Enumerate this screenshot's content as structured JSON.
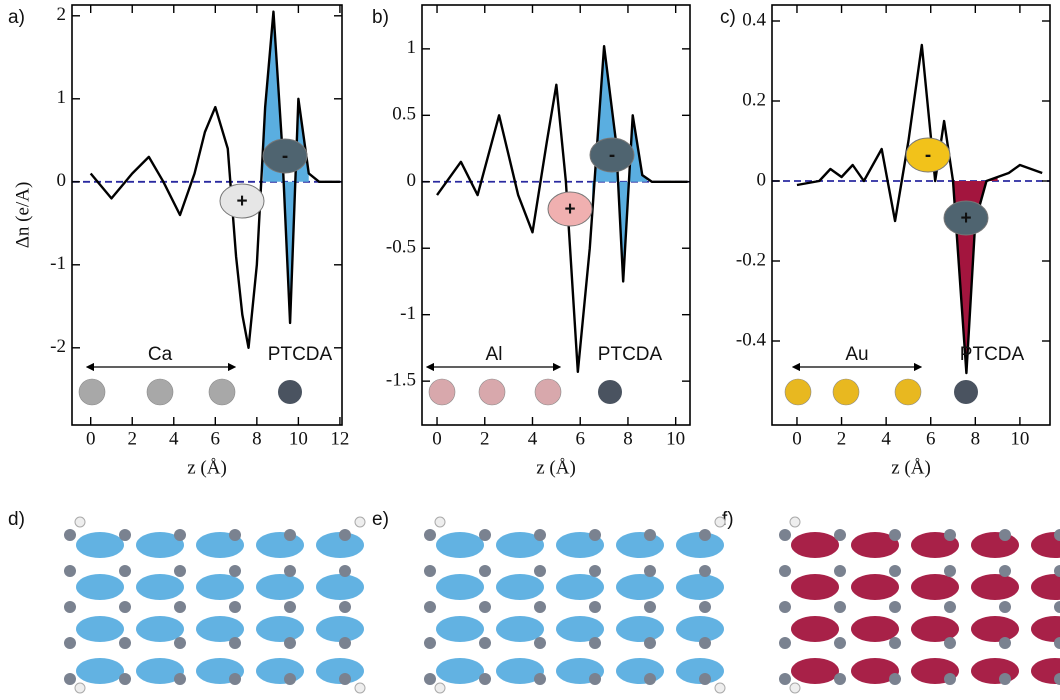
{
  "chart_data": [
    {
      "type": "line",
      "panel_label": "a)",
      "xlabel": "z (Å)",
      "ylabel": "Δn (e/A)",
      "x": [
        0,
        1,
        2,
        2.8,
        3.5,
        4.3,
        5,
        5.5,
        6,
        6.6,
        7,
        7.3,
        7.6,
        8,
        8.4,
        8.8,
        9.2,
        9.6,
        10,
        10.5,
        11,
        12
      ],
      "values": [
        0.1,
        -0.2,
        0.1,
        0.3,
        0,
        -0.4,
        0.1,
        0.6,
        0.9,
        0.4,
        -0.9,
        -1.6,
        -2.0,
        -1.0,
        0.9,
        2.05,
        0.5,
        -1.7,
        1.0,
        0.1,
        0,
        0
      ],
      "color": "#000000",
      "xlim": [
        -0.9,
        12.1
      ],
      "ylim": [
        -2.93,
        2.13
      ],
      "xticks": [
        0,
        2,
        4,
        6,
        8,
        10,
        12
      ],
      "yticks": [
        -2,
        -1,
        0,
        1,
        2
      ],
      "zero_line_color": "#2a2aa0",
      "fill": {
        "from": 8.3,
        "to": 10.5,
        "color": "#5aaee0"
      },
      "annotations": {
        "plus": "+",
        "minus": "-",
        "metal": "Ca",
        "molecule": "PTCDA"
      },
      "plus_color": "#e6e6e6",
      "minus_color": "#4f6470",
      "atom_color": "#a8a8a8"
    },
    {
      "type": "line",
      "panel_label": "b)",
      "xlabel": "z (Å)",
      "x": [
        0,
        1,
        1.7,
        2.6,
        3.4,
        4,
        4.6,
        5,
        5.4,
        5.9,
        6.4,
        7,
        7.5,
        7.8,
        8.2,
        8.6,
        9,
        10.5
      ],
      "values": [
        -0.1,
        0.15,
        -0.1,
        0.5,
        -0.1,
        -0.38,
        0.3,
        0.73,
        0,
        -1.43,
        -0.5,
        1.02,
        0.3,
        -0.75,
        0.5,
        0.05,
        0,
        0
      ],
      "color": "#000000",
      "xlim": [
        -0.63,
        10.6
      ],
      "ylim": [
        -1.83,
        1.33
      ],
      "xticks": [
        0,
        2,
        4,
        6,
        8,
        10
      ],
      "yticks": [
        -1.5,
        -1,
        -0.5,
        0,
        0.5,
        1
      ],
      "zero_line_color": "#2a2aa0",
      "fill": {
        "from": 6.5,
        "to": 8.8,
        "color": "#5aaee0"
      },
      "annotations": {
        "plus": "+",
        "minus": "-",
        "metal": "Al",
        "molecule": "PTCDA"
      },
      "plus_color": "#f0b0b0",
      "minus_color": "#4f6470",
      "atom_color": "#d8a8ac"
    },
    {
      "type": "line",
      "panel_label": "c)",
      "xlabel": "z (Å)",
      "x": [
        0,
        1,
        1.5,
        2,
        2.5,
        3,
        3.8,
        4.4,
        5,
        5.6,
        6.2,
        6.6,
        7,
        7.6,
        8,
        8.5,
        9.5,
        10,
        11
      ],
      "values": [
        -0.01,
        0,
        0.03,
        0.01,
        0.04,
        0,
        0.08,
        -0.1,
        0.1,
        0.34,
        0,
        0.15,
        0,
        -0.48,
        -0.1,
        0,
        0.02,
        0.04,
        0.02
      ],
      "color": "#000000",
      "xlim": [
        -1.12,
        11.35
      ],
      "ylim": [
        -0.61,
        0.44
      ],
      "xticks": [
        0,
        2,
        4,
        6,
        8,
        10
      ],
      "yticks": [
        -0.4,
        -0.2,
        0,
        0.2,
        0.4
      ],
      "zero_line_color": "#2a2aa0",
      "fill": {
        "from": 7,
        "to": 9,
        "color": "#a3153e"
      },
      "annotations": {
        "plus": "+",
        "minus": "-",
        "metal": "Au",
        "molecule": "PTCDA"
      },
      "plus_color": "#4f6470",
      "minus_color": "#f2c21a",
      "atom_color": "#e8b820"
    }
  ],
  "panels": [
    {
      "label": "d)"
    },
    {
      "label": "e)"
    },
    {
      "label": "f)"
    }
  ]
}
